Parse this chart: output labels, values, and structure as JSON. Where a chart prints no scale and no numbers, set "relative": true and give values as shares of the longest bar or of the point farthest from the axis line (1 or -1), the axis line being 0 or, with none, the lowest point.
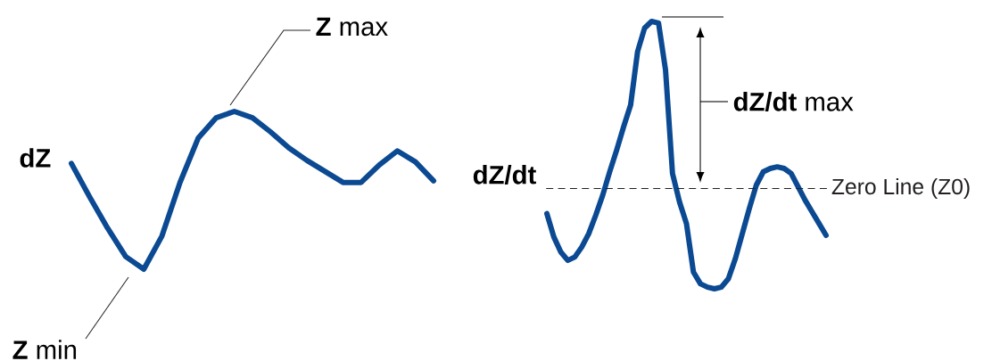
{
  "chart_data": [
    {
      "type": "line",
      "relative": true,
      "ylabel": "dZ",
      "categories": [
        null,
        null,
        null,
        null,
        null,
        null,
        null,
        null,
        null,
        null,
        null,
        null,
        null,
        null,
        null,
        null,
        null,
        null,
        null,
        null,
        null
      ],
      "series": [
        {
          "color": "#0b4a92",
          "values": [
            0.67,
            0.46,
            0.26,
            0.08,
            0,
            0.21,
            0.55,
            0.83,
            0.96,
            1,
            0.96,
            0.87,
            0.77,
            0.69,
            0.62,
            0.55,
            0.55,
            0.66,
            0.75,
            0.68,
            0.56
          ]
        }
      ],
      "annotations": [
        "**Z** max",
        "**Z** min"
      ]
    },
    {
      "type": "line",
      "relative": true,
      "ylabel": "dZ/dt",
      "categories": [
        null,
        null,
        null,
        null,
        null,
        null,
        null,
        null,
        null,
        null,
        null,
        null,
        null,
        null,
        null,
        null,
        null,
        null,
        null,
        null,
        null,
        null,
        null,
        null,
        null,
        null,
        null,
        null,
        null,
        null,
        null,
        null,
        null,
        null,
        null,
        null,
        null,
        null,
        null,
        null,
        null
      ],
      "series": [
        {
          "color": "#0b4a92",
          "values": [
            -0.15,
            -0.29,
            -0.38,
            -0.43,
            -0.41,
            -0.35,
            -0.27,
            -0.16,
            -0.04,
            0.1,
            0.23,
            0.37,
            0.5,
            0.82,
            0.96,
            1,
            0.99,
            0.71,
            0.09,
            -0.08,
            -0.21,
            -0.5,
            -0.57,
            -0.59,
            -0.6,
            -0.59,
            -0.54,
            -0.42,
            -0.27,
            -0.12,
            0.02,
            0.1,
            0.12,
            0.13,
            0.12,
            0.09,
            0.01,
            -0.07,
            -0.14,
            -0.21,
            -0.28
          ]
        }
      ],
      "ref_lines": [
        {
          "axis": "y",
          "value": 0,
          "label": "Zero Line (Z0)",
          "line_style": "dashed",
          "color": "#231f20"
        }
      ],
      "annotations": [
        "**dZ/dt** max"
      ]
    }
  ]
}
